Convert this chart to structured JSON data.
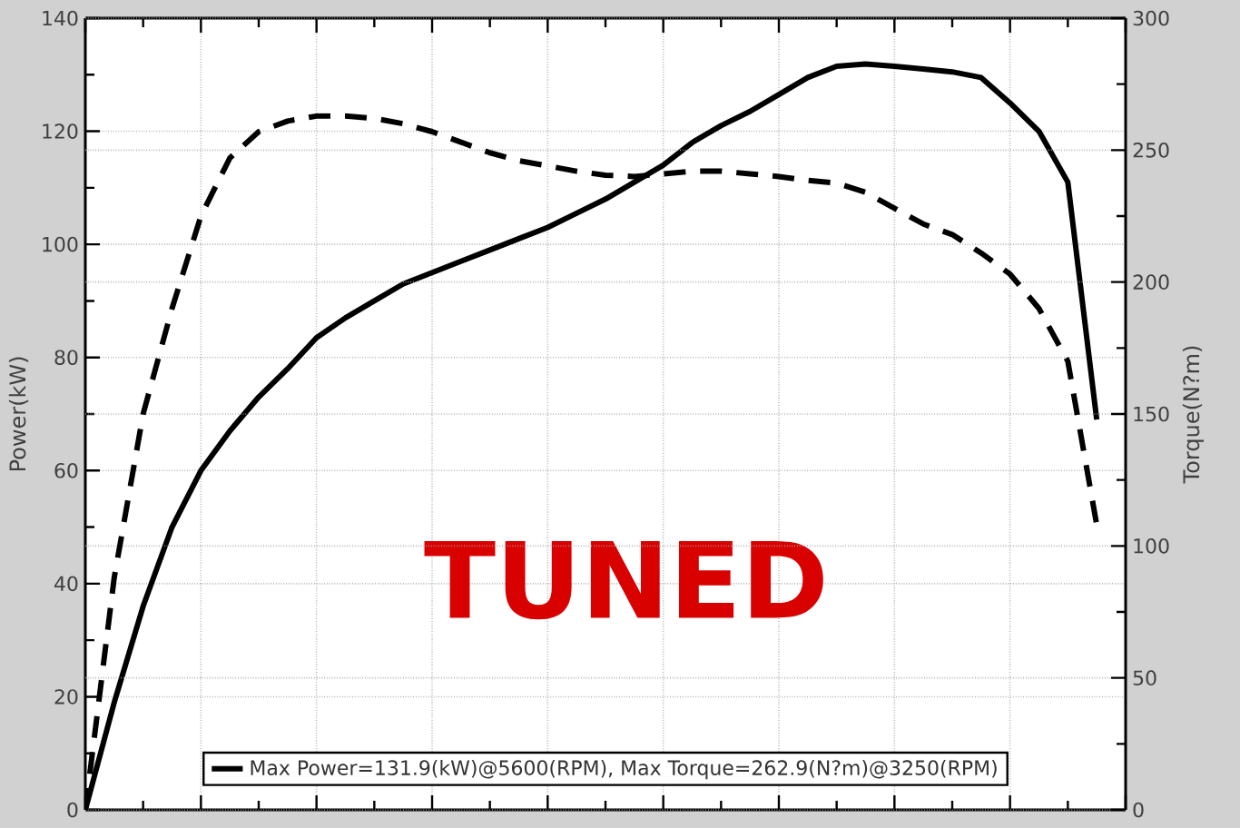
{
  "chart_data": {
    "type": "line",
    "categories": [
      null,
      null,
      null,
      null,
      null,
      null,
      null,
      null,
      null,
      null,
      null,
      null,
      null,
      null,
      null,
      null,
      null,
      null,
      null,
      null,
      null,
      null,
      null,
      null,
      null,
      null,
      null,
      null,
      null,
      null,
      null,
      null,
      null,
      null,
      null,
      null,
      null
    ],
    "series": [
      {
        "name": "Max Power=131.9(kW)@5600(RPM), Max Torque=262.9(N?m)@3250(RPM)",
        "color": "#000000",
        "line_style": "solid",
        "values": [
          0,
          19,
          36,
          50,
          60,
          67,
          73,
          78,
          83.5,
          87,
          90,
          93,
          95,
          97,
          99,
          101,
          103,
          105.5,
          108,
          111,
          114,
          118,
          121,
          123.5,
          126.5,
          129.5,
          131.5,
          131.9,
          131.5,
          131,
          130.5,
          129.5,
          125,
          120,
          111,
          69,
          null
        ]
      },
      {
        "color": "#000000",
        "line_style": "dashed",
        "axis": "y2",
        "values": [
          0,
          88,
          150,
          190,
          225,
          247,
          257,
          261,
          262.9,
          262.9,
          262,
          260,
          257,
          253,
          249,
          246,
          244,
          242,
          240.5,
          240,
          241,
          242,
          242,
          241,
          240,
          238.5,
          237.5,
          234,
          228,
          222,
          218,
          211,
          203,
          190,
          170,
          108,
          null
        ]
      }
    ],
    "ylabel": "Power(kW)",
    "y2label": "Torque(N?m)",
    "ylim": [
      0,
      140
    ],
    "yticks": [
      0,
      20,
      40,
      60,
      80,
      100,
      120,
      140
    ],
    "y2lim": [
      0,
      300
    ],
    "y2ticks": [
      0,
      50,
      100,
      150,
      200,
      250,
      300
    ],
    "annotations": [
      "TUNED"
    ],
    "grid": true,
    "legend": "bottom",
    "tick_labels": "y"
  }
}
